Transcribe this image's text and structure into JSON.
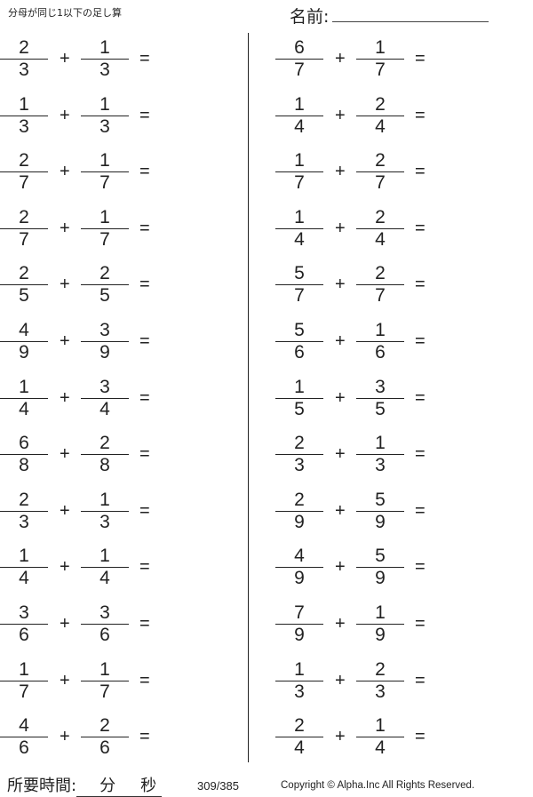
{
  "header": {
    "title": "分母が同じ1以下の足し算",
    "name_label": "名前:"
  },
  "problems": {
    "left": [
      {
        "a": [
          2,
          3
        ],
        "b": [
          1,
          3
        ]
      },
      {
        "a": [
          1,
          3
        ],
        "b": [
          1,
          3
        ]
      },
      {
        "a": [
          2,
          7
        ],
        "b": [
          1,
          7
        ]
      },
      {
        "a": [
          2,
          7
        ],
        "b": [
          1,
          7
        ]
      },
      {
        "a": [
          2,
          5
        ],
        "b": [
          2,
          5
        ]
      },
      {
        "a": [
          4,
          9
        ],
        "b": [
          3,
          9
        ]
      },
      {
        "a": [
          1,
          4
        ],
        "b": [
          3,
          4
        ]
      },
      {
        "a": [
          6,
          8
        ],
        "b": [
          2,
          8
        ]
      },
      {
        "a": [
          2,
          3
        ],
        "b": [
          1,
          3
        ]
      },
      {
        "a": [
          1,
          4
        ],
        "b": [
          1,
          4
        ]
      },
      {
        "a": [
          3,
          6
        ],
        "b": [
          3,
          6
        ]
      },
      {
        "a": [
          1,
          7
        ],
        "b": [
          1,
          7
        ]
      },
      {
        "a": [
          4,
          6
        ],
        "b": [
          2,
          6
        ]
      }
    ],
    "right": [
      {
        "a": [
          6,
          7
        ],
        "b": [
          1,
          7
        ]
      },
      {
        "a": [
          1,
          4
        ],
        "b": [
          2,
          4
        ]
      },
      {
        "a": [
          1,
          7
        ],
        "b": [
          2,
          7
        ]
      },
      {
        "a": [
          1,
          4
        ],
        "b": [
          2,
          4
        ]
      },
      {
        "a": [
          5,
          7
        ],
        "b": [
          2,
          7
        ]
      },
      {
        "a": [
          5,
          6
        ],
        "b": [
          1,
          6
        ]
      },
      {
        "a": [
          1,
          5
        ],
        "b": [
          3,
          5
        ]
      },
      {
        "a": [
          2,
          3
        ],
        "b": [
          1,
          3
        ]
      },
      {
        "a": [
          2,
          9
        ],
        "b": [
          5,
          9
        ]
      },
      {
        "a": [
          4,
          9
        ],
        "b": [
          5,
          9
        ]
      },
      {
        "a": [
          7,
          9
        ],
        "b": [
          1,
          9
        ]
      },
      {
        "a": [
          1,
          3
        ],
        "b": [
          2,
          3
        ]
      },
      {
        "a": [
          2,
          4
        ],
        "b": [
          1,
          4
        ]
      }
    ],
    "plus": "+",
    "equals": "="
  },
  "footer": {
    "time_label": "所要時間:",
    "minutes_unit": "分",
    "seconds_unit": "秒",
    "page": "309/385",
    "copyright": "Copyright ©  Alpha.Inc All Rights Reserved."
  }
}
